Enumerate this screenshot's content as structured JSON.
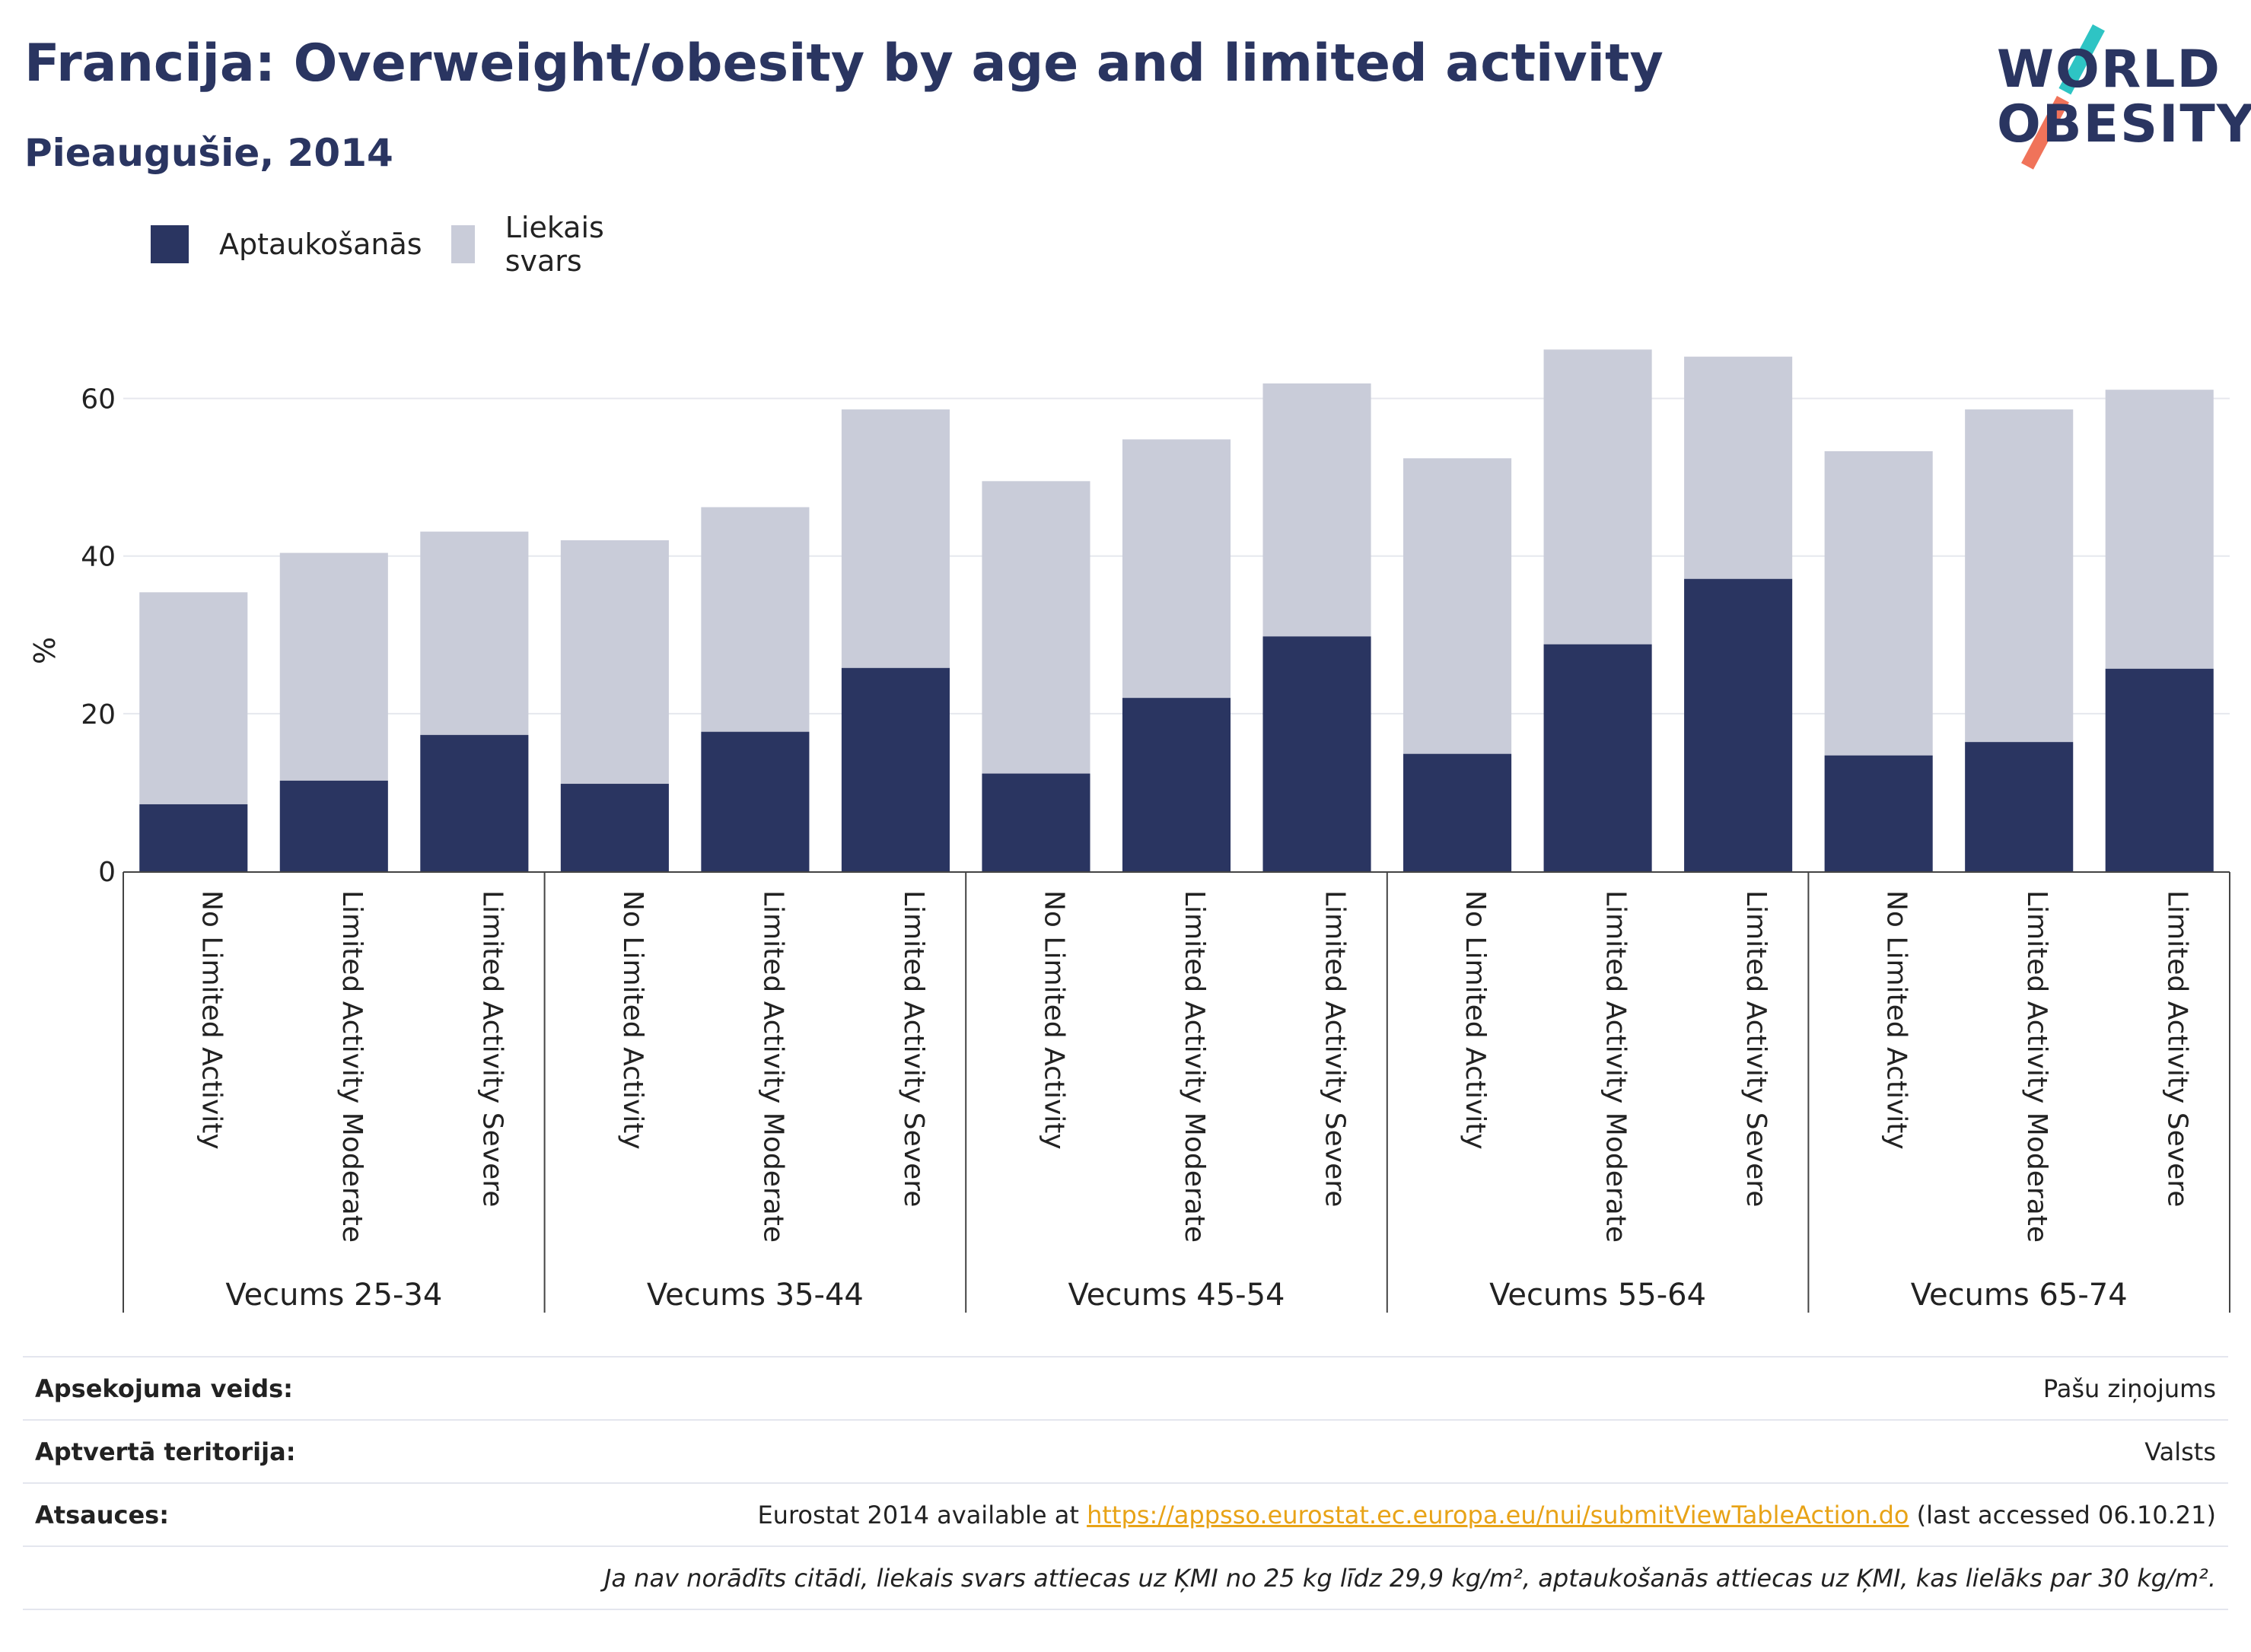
{
  "header": {
    "title": "Francija: Overweight/obesity by age and limited activity",
    "subtitle": "Pieaugušie, 2014"
  },
  "logo": {
    "line1": "WORLD",
    "line2": "OBESITY",
    "slash_colors": [
      "#2ec4c4",
      "#f0735a"
    ]
  },
  "legend": {
    "items": [
      {
        "label": "Aptaukošanās",
        "color": "#2a3561"
      },
      {
        "label": "Liekais svars",
        "color": "#c9ccd9"
      }
    ]
  },
  "chart_data": {
    "type": "bar",
    "stacked": true,
    "ylabel": "%",
    "ylim": [
      0,
      70
    ],
    "yticks": [
      0,
      20,
      40,
      60
    ],
    "grid": true,
    "legend_position": "top-left",
    "groups": [
      "Vecums 25-34",
      "Vecums 35-44",
      "Vecums 45-54",
      "Vecums 55-64",
      "Vecums 65-74"
    ],
    "subcategories": [
      "No Limited Activity",
      "Limited Activity Moderate",
      "Limited Activity Severe"
    ],
    "series": [
      {
        "name": "Aptaukošanās",
        "color": "#2a3561",
        "values": [
          8.5,
          11.5,
          17.3,
          11.1,
          17.7,
          25.8,
          12.4,
          22.0,
          29.8,
          14.9,
          28.8,
          37.1,
          14.7,
          16.4,
          25.7
        ]
      },
      {
        "name": "Liekais svars",
        "color": "#c9ccd9",
        "values": [
          26.9,
          28.9,
          25.8,
          30.9,
          28.5,
          32.8,
          37.1,
          32.8,
          32.1,
          37.5,
          37.4,
          28.2,
          38.6,
          42.2,
          35.4
        ]
      }
    ]
  },
  "info": {
    "survey_label": "Apsekojuma veids:",
    "survey_value": "Pašu ziņojums",
    "territory_label": "Aptvertā teritorija:",
    "territory_value": "Valsts",
    "refs_label": "Atsauces:",
    "refs_prefix": "Eurostat 2014 available at ",
    "refs_link": "https://appsso.eurostat.ec.europa.eu/nui/submitViewTableAction.do",
    "refs_suffix": " (last accessed 06.10.21)",
    "note": "Ja nav norādīts citādi, liekais svars attiecas uz ĶMI no 25 kg līdz 29,9 kg/m², aptaukošanās attiecas uz ĶMI, kas lielāks par 30 kg/m²."
  }
}
